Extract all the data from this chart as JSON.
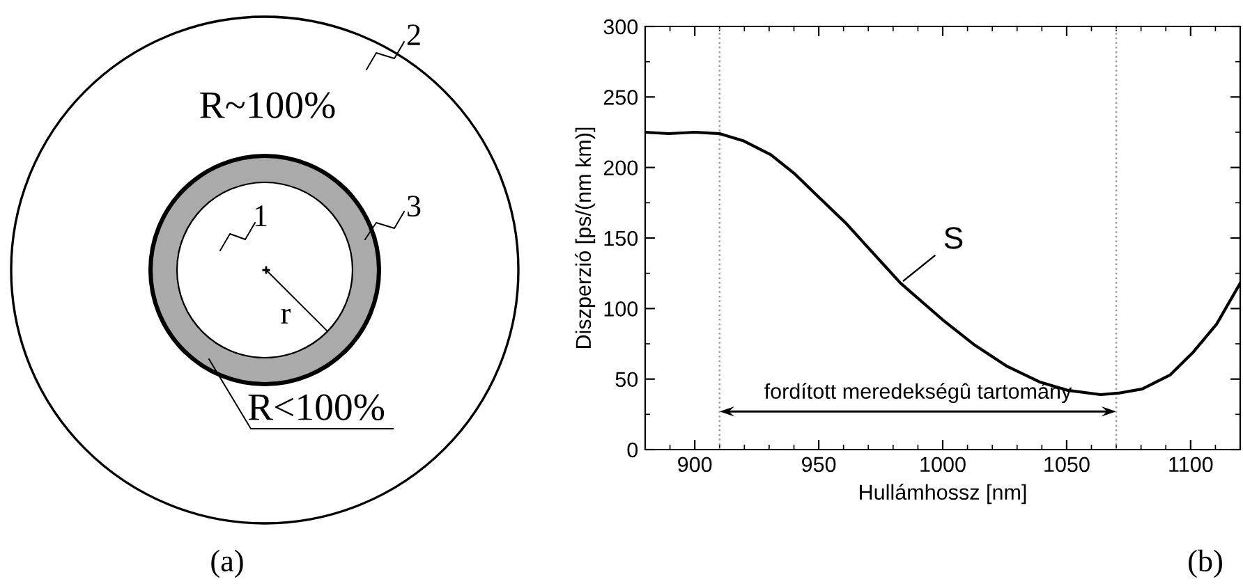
{
  "chart_data": [
    {
      "type": "other",
      "annotations": [
        "R~100%",
        "2",
        "3",
        "1",
        "r",
        "R<100%",
        "(a)"
      ]
    },
    {
      "type": "line",
      "xlabel": "Hullámhossz [nm]",
      "ylabel": "Diszperzió [ps/(nm km)]",
      "x": [
        880,
        889.5,
        900,
        910,
        919.5,
        930.7,
        940,
        950,
        960.7,
        970,
        983,
        1000,
        1013,
        1026,
        1039,
        1050.5,
        1063.7,
        1070.8,
        1080.5,
        1091.8,
        1101,
        1110.5,
        1120
      ],
      "series": [
        {
          "color": "#000000",
          "values": [
            225,
            224,
            225,
            224,
            219,
            209,
            196,
            179,
            161,
            143,
            118,
            92,
            74,
            59,
            48,
            42,
            39,
            40,
            43,
            53,
            69,
            89,
            118
          ]
        }
      ],
      "xlim": [
        880,
        1120
      ],
      "ylim": [
        0,
        300
      ],
      "xticks": [
        900,
        950,
        1000,
        1050,
        1100
      ],
      "yticks": [
        0,
        50,
        100,
        150,
        200,
        250,
        300
      ],
      "grid": false,
      "legend": false,
      "marker": "none",
      "line_style": "solid",
      "ref_lines": [
        {
          "axis": "x",
          "value": 910,
          "color": "#999999",
          "line_style": "dotted"
        },
        {
          "axis": "x",
          "value": 1070,
          "color": "#999999",
          "line_style": "dotted"
        }
      ],
      "annotations": [
        "fordított meredekségû tartomány",
        {
          "text": "S",
          "x": 983,
          "y": 118
        },
        "(b)"
      ]
    }
  ]
}
